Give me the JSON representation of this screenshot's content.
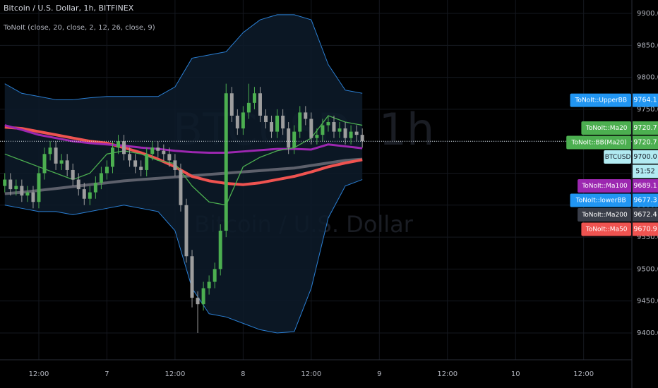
{
  "chart_data": {
    "type": "candlestick",
    "title": "Bitcoin / U.S. Dollar, 1h, BITFINEX",
    "subtitle": "ToNoIt (close, 20, close, 2, 12, 26, close, 9)",
    "watermark": [
      "BTCUSD, 1h",
      "Bitcoin / U.S. Dollar"
    ],
    "x": [
      6,
      7,
      8,
      9,
      10,
      11,
      12,
      13,
      14,
      15,
      16,
      17,
      18,
      19,
      20,
      21,
      22,
      23,
      24,
      25,
      26,
      27,
      28,
      29,
      30,
      31,
      32,
      33,
      34,
      35,
      36,
      37,
      38,
      39,
      40,
      41,
      42,
      43,
      44,
      45,
      46,
      47,
      48,
      49,
      50,
      51,
      52,
      53,
      54,
      55,
      56,
      57,
      58,
      59,
      60,
      61,
      62,
      63,
      64,
      65,
      66,
      67,
      68,
      69
    ],
    "open": [
      9630,
      9640,
      9625,
      9630,
      9615,
      9620,
      9605,
      9650,
      9680,
      9690,
      9665,
      9670,
      9655,
      9640,
      9625,
      9610,
      9620,
      9635,
      9650,
      9660,
      9690,
      9700,
      9680,
      9670,
      9660,
      9655,
      9680,
      9690,
      9685,
      9680,
      9670,
      9655,
      9600,
      9520,
      9455,
      9445,
      9470,
      9480,
      9500,
      9560,
      9775,
      9740,
      9720,
      9745,
      9760,
      9775,
      9740,
      9730,
      9715,
      9740,
      9720,
      9690,
      9715,
      9745,
      9735,
      9705,
      9710,
      9725,
      9730,
      9715,
      9720,
      9705,
      9715,
      9710
    ],
    "high": [
      9650,
      9650,
      9640,
      9640,
      9630,
      9630,
      9660,
      9690,
      9700,
      9700,
      9680,
      9680,
      9665,
      9650,
      9635,
      9630,
      9645,
      9660,
      9670,
      9700,
      9710,
      9710,
      9690,
      9680,
      9670,
      9690,
      9700,
      9700,
      9695,
      9690,
      9680,
      9665,
      9610,
      9530,
      9465,
      9480,
      9490,
      9510,
      9570,
      9790,
      9785,
      9750,
      9755,
      9790,
      9785,
      9785,
      9750,
      9740,
      9750,
      9750,
      9730,
      9725,
      9755,
      9755,
      9745,
      9720,
      9735,
      9740,
      9740,
      9730,
      9730,
      9725,
      9725,
      9720
    ],
    "low": [
      9620,
      9615,
      9615,
      9605,
      9605,
      9595,
      9595,
      9640,
      9670,
      9655,
      9655,
      9645,
      9630,
      9615,
      9600,
      9600,
      9610,
      9625,
      9640,
      9650,
      9680,
      9670,
      9660,
      9650,
      9645,
      9645,
      9670,
      9675,
      9670,
      9660,
      9645,
      9590,
      9510,
      9440,
      9400,
      9435,
      9460,
      9470,
      9490,
      9550,
      9730,
      9710,
      9710,
      9735,
      9750,
      9730,
      9720,
      9705,
      9705,
      9710,
      9680,
      9680,
      9705,
      9725,
      9695,
      9695,
      9700,
      9715,
      9705,
      9705,
      9695,
      9695,
      9700,
      9690
    ],
    "close": [
      9640,
      9625,
      9630,
      9615,
      9620,
      9605,
      9650,
      9680,
      9690,
      9665,
      9670,
      9655,
      9640,
      9625,
      9610,
      9620,
      9635,
      9650,
      9660,
      9690,
      9700,
      9680,
      9670,
      9660,
      9655,
      9680,
      9690,
      9685,
      9680,
      9670,
      9655,
      9600,
      9520,
      9455,
      9445,
      9470,
      9480,
      9500,
      9560,
      9775,
      9740,
      9720,
      9745,
      9760,
      9775,
      9740,
      9730,
      9715,
      9740,
      9720,
      9690,
      9715,
      9745,
      9735,
      9705,
      9710,
      9725,
      9730,
      9715,
      9720,
      9705,
      9715,
      9710,
      9700
    ],
    "up_color": "#4caf50",
    "down_color": "#9e9e9e",
    "band_fill": "#0d1b2a",
    "lines": {
      "x": [
        6,
        9,
        12,
        15,
        18,
        21,
        24,
        27,
        30,
        33,
        36,
        39,
        42,
        45,
        48,
        51,
        54,
        57,
        60,
        63,
        66,
        69
      ],
      "series": [
        {
          "color": "#2a7fd4",
          "width": 1,
          "values": [
            9790,
            9775,
            9770,
            9765,
            9765,
            9768,
            9770,
            9770,
            9770,
            9770,
            9785,
            9830,
            9835,
            9840,
            9870,
            9890,
            9898,
            9898,
            9890,
            9820,
            9780,
            9775
          ]
        },
        {
          "color": "#2a7fd4",
          "width": 1,
          "values": [
            9600,
            9595,
            9590,
            9590,
            9585,
            9590,
            9595,
            9600,
            9595,
            9590,
            9560,
            9470,
            9430,
            9425,
            9415,
            9405,
            9400,
            9402,
            9470,
            9580,
            9630,
            9640
          ]
        },
        {
          "color": "#5d606b",
          "width": 4,
          "values": [
            9618,
            9620,
            9623,
            9626,
            9629,
            9632,
            9635,
            9638,
            9640,
            9642,
            9644,
            9646,
            9648,
            9650,
            9652,
            9654,
            9656,
            9658,
            9662,
            9666,
            9670,
            9672
          ]
        },
        {
          "color": "#ef5350",
          "width": 4,
          "values": [
            9722,
            9720,
            9715,
            9710,
            9705,
            9700,
            9697,
            9690,
            9682,
            9672,
            9660,
            9645,
            9638,
            9634,
            9632,
            9635,
            9640,
            9645,
            9652,
            9660,
            9666,
            9671
          ]
        },
        {
          "color": "#9c27b0",
          "width": 3,
          "values": [
            9725,
            9718,
            9710,
            9705,
            9700,
            9697,
            9695,
            9693,
            9690,
            9688,
            9685,
            9683,
            9682,
            9682,
            9684,
            9686,
            9688,
            9688,
            9687,
            9695,
            9692,
            9689
          ]
        },
        {
          "color": "#4caf50",
          "width": 1.3,
          "values": [
            9680,
            9670,
            9660,
            9650,
            9640,
            9650,
            9680,
            9685,
            9680,
            9670,
            9665,
            9630,
            9605,
            9600,
            9660,
            9675,
            9685,
            9690,
            9705,
            9740,
            9730,
            9725
          ]
        }
      ]
    },
    "price_tags": [
      {
        "name": "ToNoIt::UpperBB",
        "value": 9764.1,
        "color": "#2196f3"
      },
      {
        "name": "ToNoIt::Ma20",
        "value": 9720.7,
        "color": "#4caf50"
      },
      {
        "name": "ToNoIt::BB(Ma20)",
        "value": 9720.7,
        "color": "#4caf50"
      },
      {
        "name": "BTCUSD",
        "value": 9700,
        "label": "9700.0",
        "color": "#b2ebf2"
      },
      {
        "name": "ToNoIt::Ma100",
        "value": 9689.1,
        "color": "#9c27b0"
      },
      {
        "name": "ToNoIt::lowerBB",
        "value": 9677.3,
        "color": "#2196f3"
      },
      {
        "name": "ToNoIt::Ma200",
        "value": 9672.4,
        "color": "#3a3e49"
      },
      {
        "name": "ToNoIt::Ma50",
        "value": 9670.9,
        "color": "#ef5350"
      }
    ],
    "countdown": "51:52",
    "xlim": [
      5.16,
      116.5
    ],
    "xticks": [
      {
        "value": 12,
        "label": "12:00"
      },
      {
        "value": 24,
        "label": "7"
      },
      {
        "value": 36,
        "label": "12:00"
      },
      {
        "value": 48,
        "label": "8"
      },
      {
        "value": 60,
        "label": "12:00"
      },
      {
        "value": 72,
        "label": "9"
      },
      {
        "value": 84,
        "label": "12:00"
      },
      {
        "value": 96,
        "label": "10"
      },
      {
        "value": 108,
        "label": "12:00"
      }
    ],
    "ylim": [
      9358,
      9921
    ],
    "yticks": [
      {
        "value": 9400,
        "label": "9400.0"
      },
      {
        "value": 9450,
        "label": "9450.0"
      },
      {
        "value": 9500,
        "label": "9500.0"
      },
      {
        "value": 9550,
        "label": "9550.0"
      },
      {
        "value": 9600,
        "label": "9600.0"
      },
      {
        "value": 9650,
        "label": "9650.0"
      },
      {
        "value": 9700,
        "label": "9700.0"
      },
      {
        "value": 9750,
        "label": "9750.0"
      },
      {
        "value": 9800,
        "label": "9800.0"
      },
      {
        "value": 9850,
        "label": "9850.0"
      },
      {
        "value": 9900,
        "label": "9900.0"
      }
    ],
    "grid": true
  }
}
